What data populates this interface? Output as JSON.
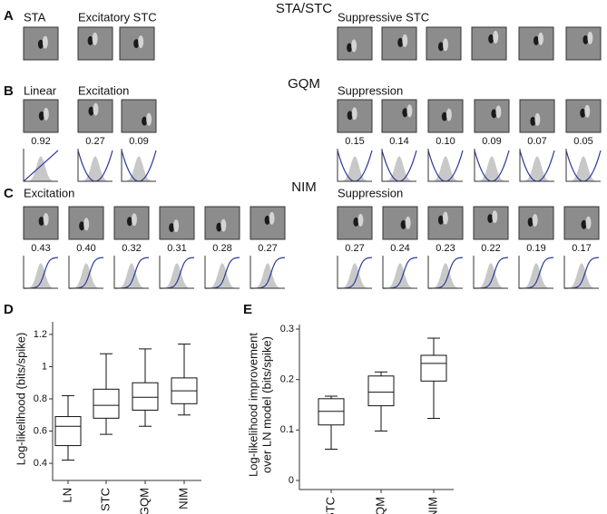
{
  "panels": {
    "A": {
      "label": "A",
      "title": "STA/STC",
      "groups": [
        {
          "title": "STA"
        },
        {
          "title": "Excitatory STC"
        },
        {
          "title": "Suppressive STC"
        }
      ]
    },
    "B": {
      "label": "B",
      "title": "GQM",
      "groups": [
        {
          "title": "Linear",
          "weights": [
            "0.92"
          ]
        },
        {
          "title": "Excitation",
          "weights": [
            "0.27",
            "0.09"
          ]
        },
        {
          "title": "Suppression",
          "weights": [
            "0.15",
            "0.14",
            "0.10",
            "0.09",
            "0.07",
            "0.05"
          ]
        }
      ]
    },
    "C": {
      "label": "C",
      "title": "NIM",
      "groups": [
        {
          "title": "Excitation",
          "weights": [
            "0.43",
            "0.40",
            "0.32",
            "0.31",
            "0.28",
            "0.27"
          ]
        },
        {
          "title": "Suppression",
          "weights": [
            "0.27",
            "0.24",
            "0.23",
            "0.22",
            "0.19",
            "0.17"
          ]
        }
      ]
    }
  },
  "chart_data": [
    {
      "type": "box",
      "panel_label": "D",
      "y_label": "Log-likelihood (bits/spike)",
      "categories": [
        "LN",
        "STC",
        "GQM",
        "NIM"
      ],
      "whisker_low": [
        0.42,
        0.58,
        0.63,
        0.7
      ],
      "q1": [
        0.51,
        0.68,
        0.73,
        0.77
      ],
      "median": [
        0.63,
        0.76,
        0.81,
        0.85
      ],
      "q3": [
        0.69,
        0.86,
        0.9,
        0.93
      ],
      "whisker_high": [
        0.82,
        1.08,
        1.11,
        1.14
      ],
      "ylim": [
        0.35,
        1.25
      ],
      "yticks": [
        0.4,
        0.6,
        0.8,
        1.0,
        1.2
      ]
    },
    {
      "type": "box",
      "panel_label": "E",
      "y_label": [
        "Log-likelihood improvement",
        "over LN model (bits/spike)"
      ],
      "categories": [
        "STC",
        "GQM",
        "NIM"
      ],
      "whisker_low": [
        0.062,
        0.098,
        0.123
      ],
      "q1": [
        0.11,
        0.148,
        0.197
      ],
      "median": [
        0.137,
        0.175,
        0.232
      ],
      "q3": [
        0.162,
        0.207,
        0.248
      ],
      "whisker_high": [
        0.167,
        0.215,
        0.282
      ],
      "ylim": [
        0,
        0.3
      ],
      "yticks": [
        0.0,
        0.1,
        0.2,
        0.3
      ]
    }
  ]
}
